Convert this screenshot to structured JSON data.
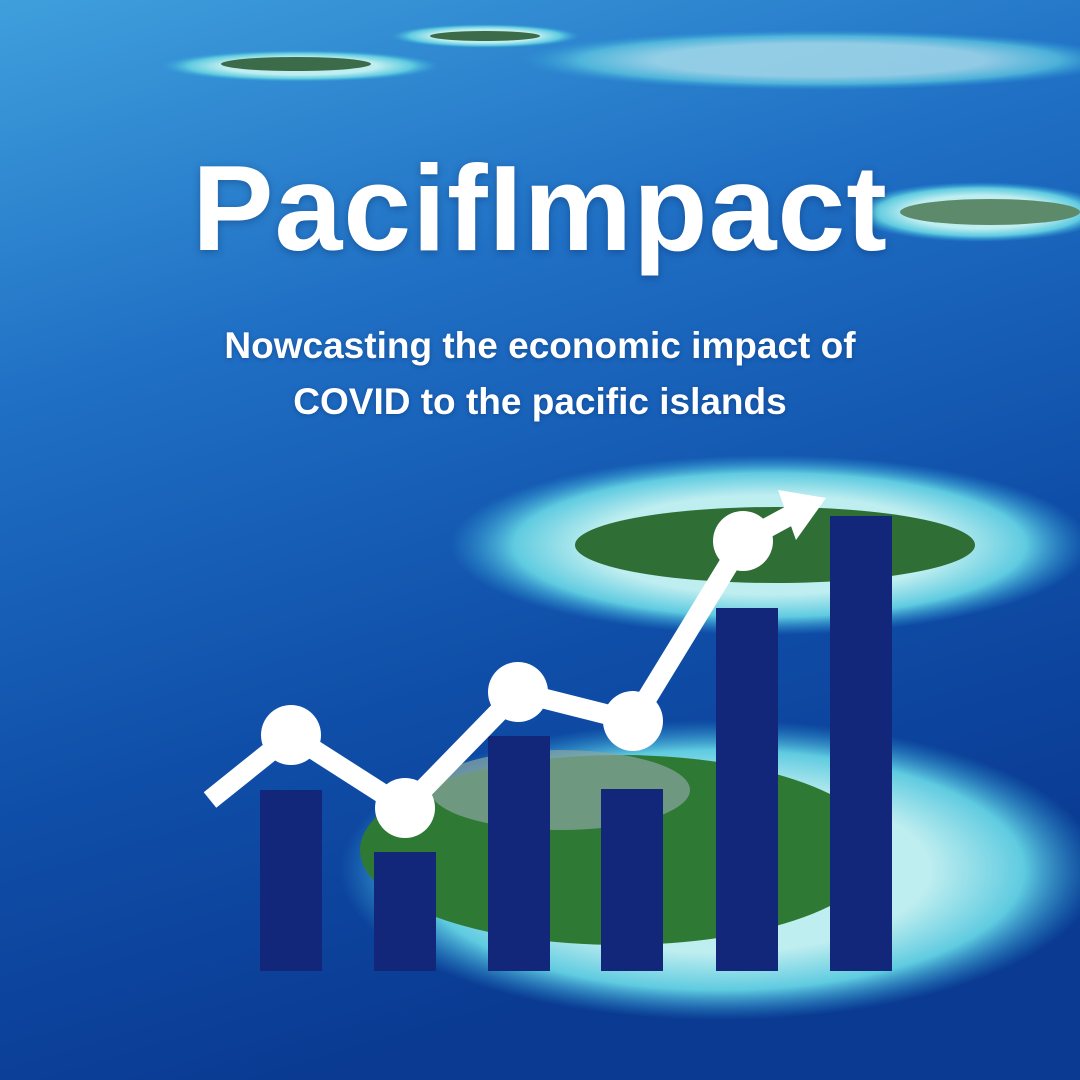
{
  "header": {
    "title": "PacifImpact",
    "subtitle": "Nowcasting the economic impact of COVID to the pacific islands"
  }
}
